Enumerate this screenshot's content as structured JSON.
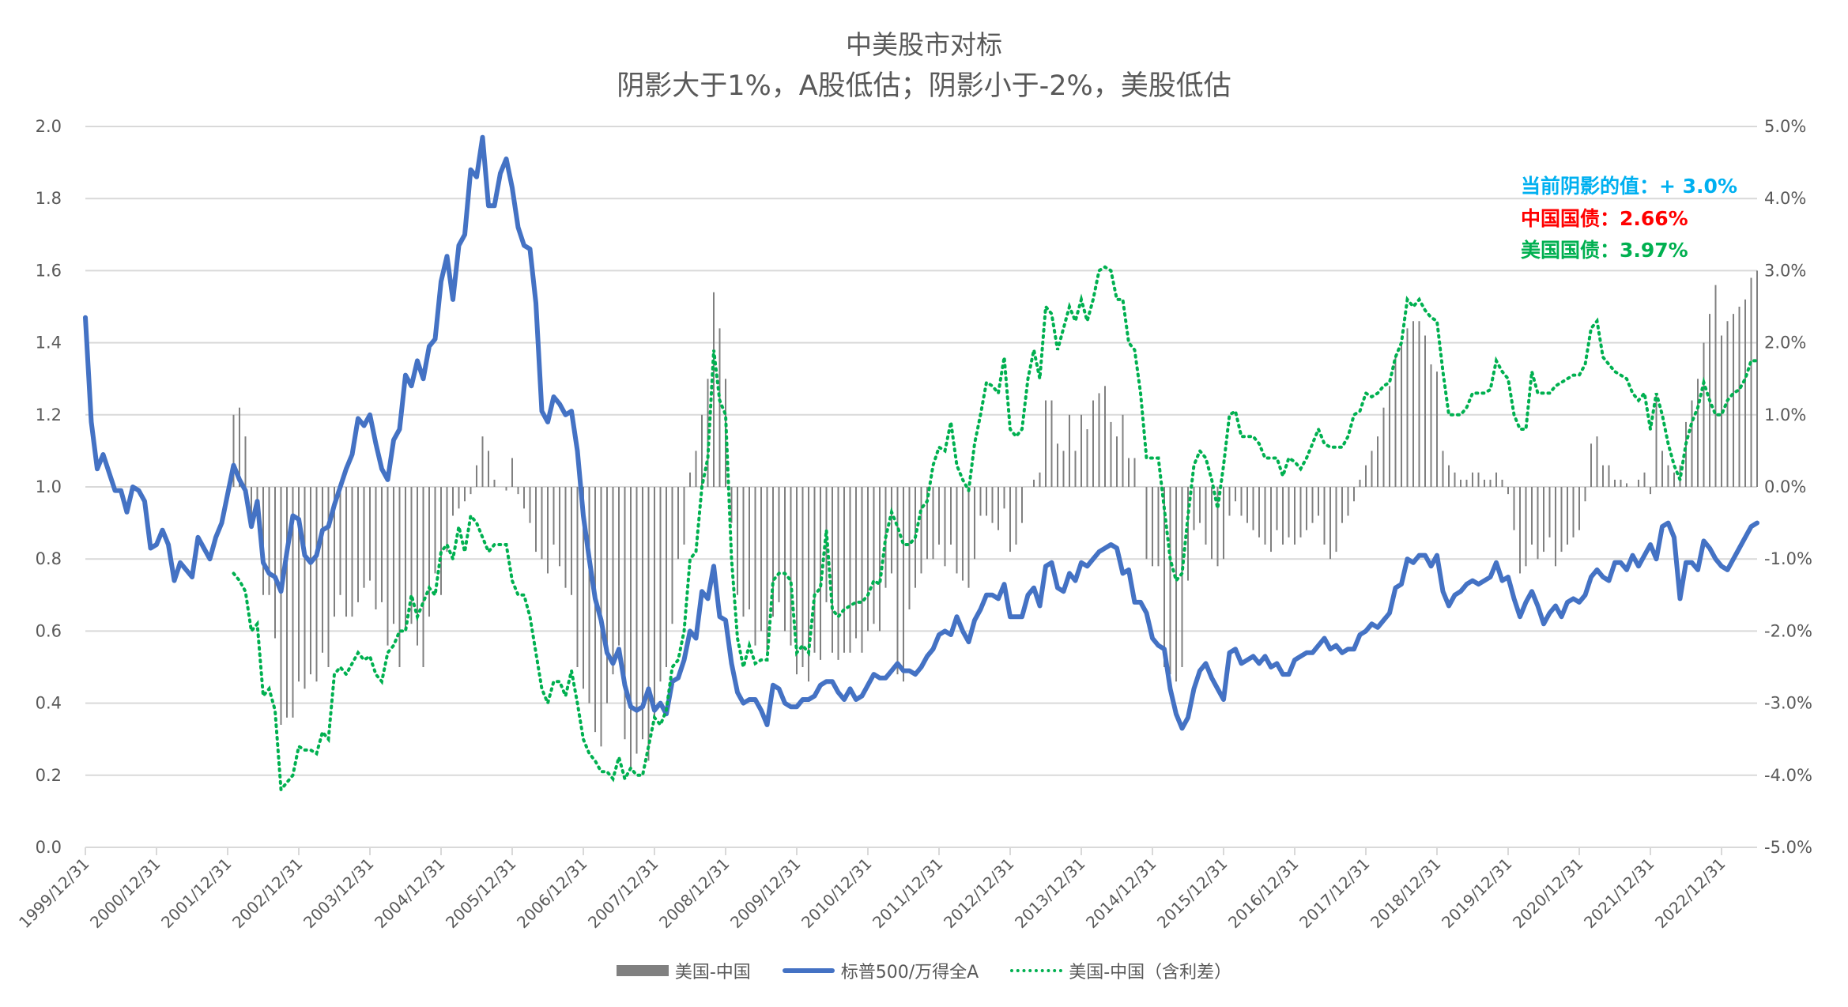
{
  "chart_data": {
    "type": "bar+line",
    "title": "中美股市对标",
    "subtitle": "阴影大于1%，A股低估；阴影小于-2%，美股低估",
    "x_axis": {
      "tick_labels": [
        "1999/12/31",
        "2000/12/31",
        "2001/12/31",
        "2002/12/31",
        "2003/12/31",
        "2004/12/31",
        "2005/12/31",
        "2006/12/31",
        "2007/12/31",
        "2008/12/31",
        "2009/12/31",
        "2010/12/31",
        "2011/12/31",
        "2012/12/31",
        "2013/12/31",
        "2014/12/31",
        "2015/12/31",
        "2016/12/31",
        "2017/12/31",
        "2018/12/31",
        "2019/12/31",
        "2020/12/31",
        "2021/12/31",
        "2022/12/31"
      ]
    },
    "y_left": {
      "ylim": [
        0,
        2.0
      ],
      "ticks": [
        "0.0",
        "0.2",
        "0.4",
        "0.6",
        "0.8",
        "1.0",
        "1.2",
        "1.4",
        "1.6",
        "1.8",
        "2.0"
      ]
    },
    "y_right": {
      "ylim": [
        -5.0,
        5.0
      ],
      "unit": "%",
      "ticks": [
        "-5.0%",
        "-4.0%",
        "-3.0%",
        "-2.0%",
        "-1.0%",
        "0.0%",
        "1.0%",
        "2.0%",
        "3.0%",
        "4.0%",
        "5.0%"
      ]
    },
    "grid": true,
    "legend_position": "bottom",
    "series": [
      {
        "name": "美国-中国",
        "kind": "bar",
        "axis": "right",
        "color": "#808080",
        "start": "2002-01",
        "frequency": "monthly",
        "values": [
          1.0,
          1.1,
          0.7,
          -0.5,
          -0.2,
          -1.5,
          -1.5,
          -2.1,
          -3.3,
          -3.2,
          -3.2,
          -2.7,
          -2.8,
          -2.6,
          -2.7,
          -2.3,
          -2.5,
          -1.8,
          -1.5,
          -1.8,
          -1.8,
          -1.6,
          -1.4,
          -1.3,
          -1.7,
          -1.6,
          -2.2,
          -1.9,
          -2.5,
          -2.0,
          -1.9,
          -2.2,
          -2.5,
          -1.8,
          -1.2,
          -1.5,
          -0.9,
          -0.4,
          -0.3,
          -0.2,
          -0.1,
          0.3,
          0.7,
          0.5,
          0.1,
          0.0,
          -0.05,
          0.4,
          -0.1,
          -0.3,
          -0.5,
          -0.9,
          -1.0,
          -1.2,
          -0.8,
          -1.1,
          -1.4,
          -1.5,
          -2.5,
          -2.8,
          -3.0,
          -3.4,
          -3.6,
          -3.0,
          -2.6,
          -2.2,
          -3.5,
          -3.9,
          -3.7,
          -3.5,
          -3.8,
          -3.2,
          -2.7,
          -2.5,
          -1.9,
          -1.0,
          -0.8,
          0.2,
          0.5,
          1.0,
          1.5,
          2.7,
          2.2,
          1.5,
          -0.5,
          -1.5,
          -1.8,
          -1.7,
          -2.2,
          -2.0,
          -2.3,
          -1.8,
          -1.6,
          -2.0,
          -2.2,
          -2.6,
          -2.5,
          -2.7,
          -2.3,
          -2.4,
          -1.6,
          -2.3,
          -2.4,
          -2.3,
          -2.3,
          -2.1,
          -2.3,
          -2.0,
          -1.9,
          -2.0,
          -1.4,
          -1.2,
          -2.6,
          -2.7,
          -1.7,
          -1.4,
          -1.2,
          -1.0,
          -1.0,
          -0.8,
          -1.1,
          -0.8,
          -1.2,
          -1.3,
          -1.4,
          -1.0,
          -0.4,
          -0.4,
          -0.5,
          -0.6,
          -0.3,
          -0.9,
          -0.8,
          -0.5,
          0.0,
          0.1,
          0.2,
          1.2,
          1.2,
          0.6,
          0.5,
          1.0,
          0.5,
          1.0,
          0.8,
          1.2,
          1.3,
          1.4,
          0.9,
          0.7,
          1.0,
          0.4,
          0.4,
          0.0,
          -1.0,
          -1.1,
          -1.1,
          -2.5,
          -2.6,
          -2.7,
          -2.5,
          -1.3,
          -0.6,
          -0.5,
          -0.8,
          -1.0,
          -1.1,
          -1.0,
          -0.4,
          -0.2,
          -0.4,
          -0.5,
          -0.6,
          -0.7,
          -0.8,
          -0.9,
          -0.6,
          -0.8,
          -0.7,
          -0.8,
          -0.7,
          -0.6,
          -0.5,
          -0.4,
          -0.8,
          -1.0,
          -0.9,
          -0.5,
          -0.4,
          -0.2,
          0.1,
          0.3,
          0.5,
          0.7,
          1.1,
          1.4,
          1.8,
          2.0,
          2.2,
          2.3,
          2.3,
          2.1,
          1.7,
          1.6,
          0.5,
          0.3,
          0.2,
          0.1,
          0.1,
          0.2,
          0.2,
          0.1,
          0.1,
          0.2,
          0.1,
          -0.1,
          -0.6,
          -1.2,
          -1.1,
          -0.8,
          -1.0,
          -0.9,
          -0.7,
          -1.1,
          -0.9,
          -0.8,
          -0.7,
          -0.6,
          -0.2,
          0.6,
          0.7,
          0.3,
          0.3,
          0.1,
          0.1,
          0.05,
          0.0,
          0.1,
          0.2,
          -0.1,
          1.3,
          0.5,
          0.3,
          0.2,
          0.3,
          0.9,
          1.2,
          1.5,
          2.0,
          2.4,
          2.8,
          2.1,
          2.3,
          2.4,
          2.5,
          2.6,
          2.9,
          3.0
        ]
      },
      {
        "name": "标普500/万得全A",
        "kind": "line",
        "axis": "left",
        "color": "#4472C4",
        "start": "1999-12",
        "frequency": "monthly",
        "values": [
          1.47,
          1.18,
          1.05,
          1.09,
          1.04,
          0.99,
          0.99,
          0.93,
          1.0,
          0.99,
          0.96,
          0.83,
          0.84,
          0.88,
          0.84,
          0.74,
          0.79,
          0.77,
          0.75,
          0.86,
          0.83,
          0.8,
          0.86,
          0.9,
          0.98,
          1.06,
          1.02,
          0.99,
          0.89,
          0.96,
          0.79,
          0.76,
          0.75,
          0.71,
          0.82,
          0.92,
          0.91,
          0.81,
          0.79,
          0.81,
          0.88,
          0.89,
          0.95,
          1.0,
          1.05,
          1.09,
          1.19,
          1.17,
          1.2,
          1.12,
          1.05,
          1.02,
          1.13,
          1.16,
          1.31,
          1.28,
          1.35,
          1.3,
          1.39,
          1.41,
          1.57,
          1.64,
          1.52,
          1.67,
          1.7,
          1.88,
          1.86,
          1.97,
          1.78,
          1.78,
          1.87,
          1.91,
          1.83,
          1.72,
          1.67,
          1.66,
          1.51,
          1.21,
          1.18,
          1.25,
          1.23,
          1.2,
          1.21,
          1.1,
          0.92,
          0.8,
          0.69,
          0.63,
          0.54,
          0.51,
          0.55,
          0.45,
          0.39,
          0.38,
          0.39,
          0.44,
          0.38,
          0.4,
          0.37,
          0.46,
          0.47,
          0.52,
          0.6,
          0.58,
          0.71,
          0.69,
          0.78,
          0.64,
          0.63,
          0.51,
          0.43,
          0.4,
          0.41,
          0.41,
          0.38,
          0.34,
          0.45,
          0.44,
          0.4,
          0.39,
          0.39,
          0.41,
          0.41,
          0.42,
          0.45,
          0.46,
          0.46,
          0.43,
          0.41,
          0.44,
          0.41,
          0.42,
          0.45,
          0.48,
          0.47,
          0.47,
          0.49,
          0.51,
          0.49,
          0.49,
          0.48,
          0.5,
          0.53,
          0.55,
          0.59,
          0.6,
          0.59,
          0.64,
          0.6,
          0.57,
          0.63,
          0.66,
          0.7,
          0.7,
          0.69,
          0.73,
          0.64,
          0.64,
          0.64,
          0.7,
          0.72,
          0.67,
          0.78,
          0.79,
          0.72,
          0.71,
          0.76,
          0.74,
          0.79,
          0.78,
          0.8,
          0.82,
          0.83,
          0.84,
          0.83,
          0.76,
          0.77,
          0.68,
          0.68,
          0.65,
          0.58,
          0.56,
          0.55,
          0.44,
          0.37,
          0.33,
          0.36,
          0.44,
          0.49,
          0.51,
          0.47,
          0.44,
          0.41,
          0.54,
          0.55,
          0.51,
          0.52,
          0.53,
          0.51,
          0.53,
          0.5,
          0.51,
          0.48,
          0.48,
          0.52,
          0.53,
          0.54,
          0.54,
          0.56,
          0.58,
          0.55,
          0.56,
          0.54,
          0.55,
          0.55,
          0.59,
          0.6,
          0.62,
          0.61,
          0.63,
          0.65,
          0.72,
          0.73,
          0.8,
          0.79,
          0.81,
          0.81,
          0.78,
          0.81,
          0.71,
          0.67,
          0.7,
          0.71,
          0.73,
          0.74,
          0.73,
          0.74,
          0.75,
          0.79,
          0.74,
          0.75,
          0.69,
          0.64,
          0.68,
          0.71,
          0.67,
          0.62,
          0.65,
          0.67,
          0.64,
          0.68,
          0.69,
          0.68,
          0.7,
          0.75,
          0.77,
          0.75,
          0.74,
          0.79,
          0.79,
          0.77,
          0.81,
          0.78,
          0.81,
          0.84,
          0.8,
          0.89,
          0.9,
          0.86,
          0.69,
          0.79,
          0.79,
          0.77,
          0.85,
          0.83,
          0.8,
          0.78,
          0.77,
          0.8,
          0.83,
          0.86,
          0.89,
          0.9
        ]
      },
      {
        "name": "美国-中国（含利差）",
        "kind": "dotted-line",
        "axis": "right",
        "color": "#00B050",
        "start": "2002-01",
        "frequency": "monthly",
        "values": [
          -1.2,
          -1.3,
          -1.45,
          -2.0,
          -1.9,
          -2.9,
          -2.8,
          -3.1,
          -4.2,
          -4.1,
          -4.0,
          -3.6,
          -3.65,
          -3.65,
          -3.7,
          -3.4,
          -3.5,
          -2.6,
          -2.5,
          -2.6,
          -2.45,
          -2.3,
          -2.4,
          -2.35,
          -2.6,
          -2.7,
          -2.3,
          -2.2,
          -2.0,
          -2.0,
          -1.5,
          -1.8,
          -1.6,
          -1.4,
          -1.5,
          -0.9,
          -0.8,
          -1.0,
          -0.55,
          -0.9,
          -0.4,
          -0.5,
          -0.7,
          -0.9,
          -0.8,
          -0.8,
          -0.8,
          -1.3,
          -1.5,
          -1.5,
          -1.8,
          -2.3,
          -2.8,
          -3.0,
          -2.7,
          -2.7,
          -2.9,
          -2.55,
          -3.0,
          -3.5,
          -3.7,
          -3.8,
          -3.95,
          -3.95,
          -4.05,
          -3.75,
          -4.05,
          -3.9,
          -4.0,
          -4.0,
          -3.6,
          -3.2,
          -3.3,
          -3.1,
          -2.5,
          -2.4,
          -2.0,
          -1.0,
          -0.9,
          0.0,
          0.4,
          1.9,
          1.2,
          1.0,
          -1.0,
          -2.1,
          -2.5,
          -2.2,
          -2.45,
          -2.4,
          -2.4,
          -1.3,
          -1.2,
          -1.2,
          -1.3,
          -2.3,
          -2.2,
          -2.3,
          -1.5,
          -1.4,
          -0.6,
          -1.7,
          -1.8,
          -1.7,
          -1.65,
          -1.6,
          -1.6,
          -1.5,
          -1.3,
          -1.35,
          -0.7,
          -0.35,
          -0.55,
          -0.8,
          -0.8,
          -0.7,
          -0.3,
          -0.2,
          0.3,
          0.55,
          0.5,
          0.9,
          0.3,
          0.1,
          -0.05,
          0.6,
          1.0,
          1.45,
          1.4,
          1.3,
          1.8,
          0.8,
          0.7,
          0.8,
          1.5,
          1.9,
          1.5,
          2.5,
          2.4,
          1.9,
          2.2,
          2.5,
          2.3,
          2.6,
          2.3,
          2.6,
          3.0,
          3.05,
          3.0,
          2.6,
          2.6,
          2.0,
          1.9,
          1.3,
          0.4,
          0.4,
          0.4,
          -0.3,
          -1.0,
          -1.3,
          -1.2,
          -0.4,
          0.3,
          0.5,
          0.4,
          0.1,
          -0.3,
          0.3,
          1.0,
          1.05,
          0.7,
          0.7,
          0.7,
          0.6,
          0.4,
          0.4,
          0.4,
          0.15,
          0.4,
          0.35,
          0.25,
          0.4,
          0.6,
          0.8,
          0.6,
          0.55,
          0.55,
          0.55,
          0.7,
          1.0,
          1.05,
          1.3,
          1.25,
          1.3,
          1.4,
          1.45,
          1.8,
          2.0,
          2.6,
          2.5,
          2.6,
          2.45,
          2.35,
          2.3,
          1.6,
          1.0,
          1.0,
          1.0,
          1.1,
          1.3,
          1.3,
          1.3,
          1.35,
          1.75,
          1.6,
          1.5,
          1.0,
          0.8,
          0.8,
          1.6,
          1.3,
          1.3,
          1.3,
          1.4,
          1.45,
          1.5,
          1.55,
          1.55,
          1.7,
          2.2,
          2.3,
          1.8,
          1.7,
          1.6,
          1.55,
          1.5,
          1.3,
          1.2,
          1.3,
          0.8,
          1.3,
          1.0,
          0.6,
          0.3,
          0.1,
          0.6,
          0.9,
          1.1,
          1.45,
          1.2,
          1.0,
          1.0,
          1.2,
          1.3,
          1.35,
          1.5,
          1.75,
          1.75
        ]
      }
    ],
    "annotations": [
      {
        "text": "当前阴影的值：+ 3.0%",
        "color": "#00B0F0"
      },
      {
        "text": "中国国债：2.66%",
        "color": "#FF0000"
      },
      {
        "text": "美国国债：3.97%",
        "color": "#00B050"
      }
    ]
  }
}
